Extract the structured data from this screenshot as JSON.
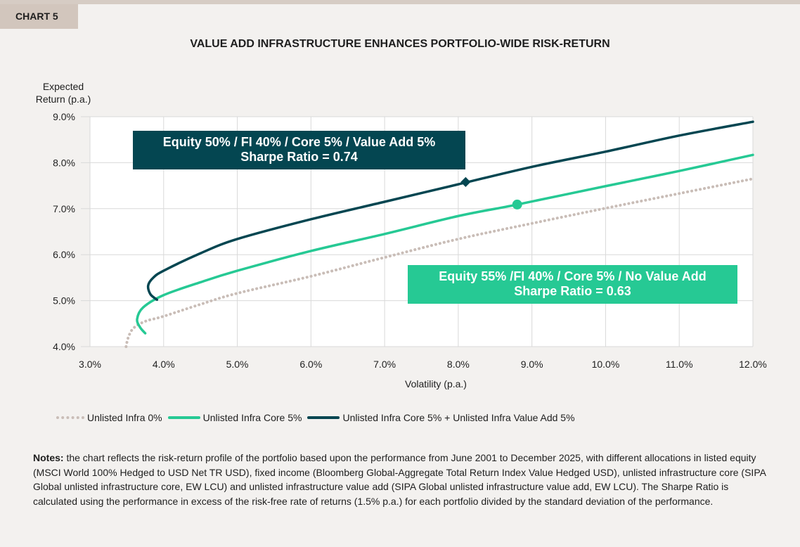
{
  "header": {
    "tag": "CHART 5"
  },
  "chart_data": {
    "type": "line",
    "title": "VALUE ADD INFRASTRUCTURE ENHANCES PORTFOLIO-WIDE RISK-RETURN",
    "xlabel": "Volatility (p.a.)",
    "ylabel": "Expected Return (p.a.)",
    "xlim": [
      3.0,
      12.0
    ],
    "ylim": [
      4.0,
      9.0
    ],
    "x_ticks": [
      "3.0%",
      "4.0%",
      "5.0%",
      "6.0%",
      "7.0%",
      "8.0%",
      "9.0%",
      "10.0%",
      "11.0%",
      "12.0%"
    ],
    "y_ticks": [
      "4.0%",
      "5.0%",
      "6.0%",
      "7.0%",
      "8.0%",
      "9.0%"
    ],
    "grid": true,
    "legend_position": "bottom-left",
    "series": [
      {
        "name": "Unlisted Infra 0%",
        "color": "#c9bdb7",
        "style": "dotted",
        "points": [
          [
            3.49,
            4.0
          ],
          [
            3.52,
            4.2
          ],
          [
            3.59,
            4.4
          ],
          [
            3.75,
            4.55
          ],
          [
            4.0,
            4.66
          ],
          [
            4.5,
            4.92
          ],
          [
            5.0,
            5.16
          ],
          [
            6.0,
            5.53
          ],
          [
            7.0,
            5.94
          ],
          [
            8.0,
            6.34
          ],
          [
            9.0,
            6.68
          ],
          [
            10.0,
            7.01
          ],
          [
            11.0,
            7.33
          ],
          [
            12.0,
            7.65
          ]
        ]
      },
      {
        "name": "Unlisted Infra Core 5%",
        "color": "#26c994",
        "style": "solid",
        "points": [
          [
            3.75,
            4.29
          ],
          [
            3.68,
            4.42
          ],
          [
            3.64,
            4.6
          ],
          [
            3.72,
            4.85
          ],
          [
            4.0,
            5.12
          ],
          [
            4.5,
            5.4
          ],
          [
            5.0,
            5.65
          ],
          [
            6.0,
            6.08
          ],
          [
            7.0,
            6.45
          ],
          [
            8.0,
            6.84
          ],
          [
            8.8,
            7.09
          ],
          [
            10.0,
            7.49
          ],
          [
            11.0,
            7.82
          ],
          [
            12.0,
            8.17
          ]
        ]
      },
      {
        "name": "Unlisted Infra Core 5% + Unlisted Infra Value Add 5%",
        "color": "#044651",
        "style": "solid",
        "points": [
          [
            3.91,
            5.02
          ],
          [
            3.82,
            5.14
          ],
          [
            3.79,
            5.33
          ],
          [
            3.86,
            5.5
          ],
          [
            4.0,
            5.65
          ],
          [
            4.5,
            6.03
          ],
          [
            5.0,
            6.34
          ],
          [
            6.0,
            6.77
          ],
          [
            7.0,
            7.15
          ],
          [
            8.0,
            7.53
          ],
          [
            9.0,
            7.91
          ],
          [
            10.0,
            8.24
          ],
          [
            11.0,
            8.59
          ],
          [
            12.0,
            8.89
          ]
        ]
      }
    ],
    "annotations": [
      {
        "series": 2,
        "marker": "diamond",
        "x": 8.1,
        "y": 7.58,
        "line1": "Equity 50% / FI 40% / Core 5% / Value Add 5%",
        "line2": "Sharpe Ratio = 0.74"
      },
      {
        "series": 1,
        "marker": "circle",
        "x": 8.8,
        "y": 7.09,
        "line1": "Equity 55% /FI 40% / Core 5% / No Value Add",
        "line2": "Sharpe Ratio = 0.63"
      }
    ]
  },
  "notes": {
    "label": "Notes:",
    "text": " the chart reflects the risk-return profile of the portfolio based upon the performance from June 2001 to December 2025, with different allocations in listed equity (MSCI World 100% Hedged to USD Net TR USD), fixed income (Bloomberg Global-Aggregate Total Return Index Value Hedged USD), unlisted infrastructure core (SIPA Global unlisted infrastructure core, EW LCU) and unlisted infrastructure value add (SIPA Global unlisted infrastructure value add, EW LCU). The Sharpe Ratio is calculated using the performance in excess of the risk-free rate of returns (1.5% p.a.) for each portfolio divided by the standard deviation of the performance."
  }
}
